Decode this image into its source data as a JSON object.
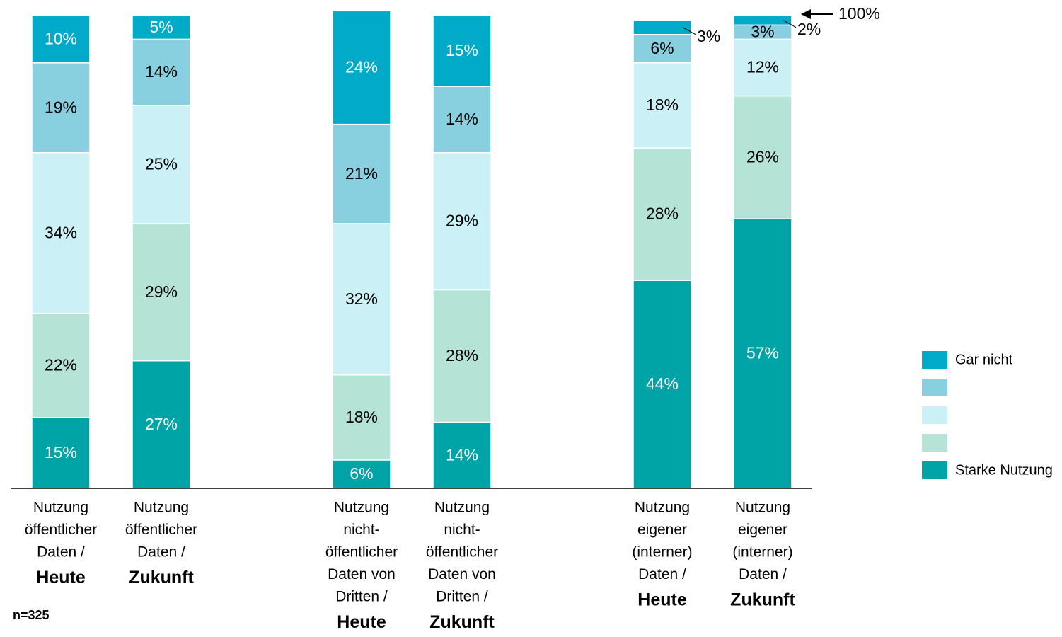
{
  "chart_data": {
    "type": "stacked_bar",
    "categories": [
      {
        "lines": [
          "Nutzung",
          "öffentlicher",
          "Daten /"
        ],
        "emphasis": "Heute"
      },
      {
        "lines": [
          "Nutzung",
          "öffentlicher",
          "Daten /"
        ],
        "emphasis": "Zukunft"
      },
      {
        "lines": [
          "Nutzung",
          "nicht-",
          "öffentlicher",
          "Daten von",
          "Dritten /"
        ],
        "emphasis": "Heute"
      },
      {
        "lines": [
          "Nutzung",
          "nicht-",
          "öffentlicher",
          "Daten von",
          "Dritten /"
        ],
        "emphasis": "Zukunft"
      },
      {
        "lines": [
          "Nutzung",
          "eigener",
          "(interner)",
          "Daten /"
        ],
        "emphasis": "Heute"
      },
      {
        "lines": [
          "Nutzung",
          "eigener",
          "(interner)",
          "Daten /"
        ],
        "emphasis": "Zukunft"
      }
    ],
    "series": [
      {
        "name": "Starke Nutzung",
        "color": "#00a4a6",
        "values": [
          15,
          27,
          6,
          14,
          44,
          57
        ],
        "value_labels": [
          "15%",
          "27%",
          "6%",
          "14%",
          "44%",
          "57%"
        ]
      },
      {
        "name": null,
        "color": "#b5e3d5",
        "values": [
          22,
          29,
          18,
          28,
          28,
          26
        ],
        "value_labels": [
          "22%",
          "29%",
          "18%",
          "28%",
          "28%",
          "26%"
        ]
      },
      {
        "name": null,
        "color": "#cbf0f6",
        "values": [
          34,
          25,
          32,
          29,
          18,
          12
        ],
        "value_labels": [
          "34%",
          "25%",
          "32%",
          "29%",
          "18%",
          "12%"
        ]
      },
      {
        "name": null,
        "color": "#88cfe0",
        "values": [
          19,
          14,
          21,
          14,
          6,
          3
        ],
        "value_labels": [
          "19%",
          "14%",
          "21%",
          "14%",
          "6%",
          "3%"
        ]
      },
      {
        "name": "Gar nicht",
        "color": "#00aac8",
        "values": [
          10,
          5,
          24,
          15,
          3,
          2
        ],
        "value_labels": [
          "10%",
          "5%",
          "24%",
          "15%",
          "3%",
          "2%"
        ]
      }
    ],
    "ylim": [
      0,
      100
    ],
    "annotation": "100%",
    "note": "n=325",
    "legend": "right"
  }
}
